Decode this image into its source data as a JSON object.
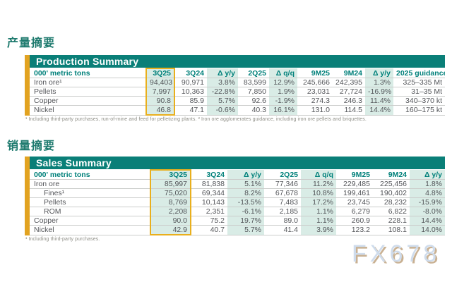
{
  "colors": {
    "teal_bar": "#0a7f78",
    "mint_column": "#d9ece6",
    "gold_highlight": "#e9af1d",
    "header_text": "#00807a",
    "body_text": "#54565a",
    "cjk_title": "#1e7a6e",
    "watermark": "#cfdcec"
  },
  "watermark": "FX678",
  "production": {
    "section_title": "产量摘要",
    "table_title": "Production Summary",
    "unit_header": "000' metric tons",
    "columns": [
      "3Q25",
      "3Q24",
      "Δ y/y",
      "2Q25",
      "Δ q/q",
      "9M25",
      "9M24",
      "Δ y/y",
      "2025 guidance"
    ],
    "rows": [
      {
        "label": "Iron ore¹",
        "indent": false,
        "values": [
          "94,403",
          "90,971",
          "3.8%",
          "83,599",
          "12.9%",
          "245,666",
          "242,395",
          "1.3%",
          "325–335 Mt"
        ]
      },
      {
        "label": "Pellets",
        "indent": false,
        "values": [
          "7,997",
          "10,363",
          "-22.8%",
          "7,850",
          "1.9%",
          "23,031",
          "27,724",
          "-16.9%",
          "31–35 Mt"
        ]
      },
      {
        "label": "Copper",
        "indent": false,
        "values": [
          "90.8",
          "85.9",
          "5.7%",
          "92.6",
          "-1.9%",
          "274.3",
          "246.3",
          "11.4%",
          "340–370 kt"
        ]
      },
      {
        "label": "Nickel",
        "indent": false,
        "values": [
          "46.8",
          "47.1",
          "-0.6%",
          "40.3",
          "16.1%",
          "131.0",
          "114.5",
          "14.4%",
          "160–175 kt"
        ]
      }
    ],
    "footnote": "¹ Including third-party purchases, run-of-mine and feed for pelletizing plants. ² Iron ore agglomerates guidance, including iron ore pellets and briquettes."
  },
  "sales": {
    "section_title": "销量摘要",
    "table_title": "Sales Summary",
    "unit_header": "000' metric tons",
    "columns": [
      "3Q25",
      "3Q24",
      "Δ y/y",
      "2Q25",
      "Δ q/q",
      "9M25",
      "9M24",
      "Δ y/y"
    ],
    "rows": [
      {
        "label": "Iron ore",
        "indent": false,
        "values": [
          "85,997",
          "81,838",
          "5.1%",
          "77,346",
          "11.2%",
          "229,485",
          "225,456",
          "1.8%"
        ]
      },
      {
        "label": "Fines¹",
        "indent": true,
        "values": [
          "75,020",
          "69,344",
          "8.2%",
          "67,678",
          "10.8%",
          "199,461",
          "190,402",
          "4.8%"
        ]
      },
      {
        "label": "Pellets",
        "indent": true,
        "values": [
          "8,769",
          "10,143",
          "-13.5%",
          "7,483",
          "17.2%",
          "23,745",
          "28,232",
          "-15.9%"
        ]
      },
      {
        "label": "ROM",
        "indent": true,
        "values": [
          "2,208",
          "2,351",
          "-6.1%",
          "2,185",
          "1.1%",
          "6,279",
          "6,822",
          "-8.0%"
        ]
      },
      {
        "label": "Copper",
        "indent": false,
        "values": [
          "90.0",
          "75.2",
          "19.7%",
          "89.0",
          "1.1%",
          "260.9",
          "228.1",
          "14.4%"
        ]
      },
      {
        "label": "Nickel",
        "indent": false,
        "values": [
          "42.9",
          "40.7",
          "5.7%",
          "41.4",
          "3.9%",
          "123.2",
          "108.1",
          "14.0%"
        ]
      }
    ],
    "footnote": "¹ Including third-party purchases."
  },
  "chart_data": [
    {
      "type": "table",
      "title": "Production Summary",
      "unit": "000' metric tons",
      "columns": [
        "3Q25",
        "3Q24",
        "Δ y/y",
        "2Q25",
        "Δ q/q",
        "9M25",
        "9M24",
        "Δ y/y",
        "2025 guidance"
      ],
      "rows": [
        [
          "Iron ore¹",
          "94,403",
          "90,971",
          "3.8%",
          "83,599",
          "12.9%",
          "245,666",
          "242,395",
          "1.3%",
          "325–335 Mt"
        ],
        [
          "Pellets",
          "7,997",
          "10,363",
          "-22.8%",
          "7,850",
          "1.9%",
          "23,031",
          "27,724",
          "-16.9%",
          "31–35 Mt"
        ],
        [
          "Copper",
          "90.8",
          "85.9",
          "5.7%",
          "92.6",
          "-1.9%",
          "274.3",
          "246.3",
          "11.4%",
          "340–370 kt"
        ],
        [
          "Nickel",
          "46.8",
          "47.1",
          "-0.6%",
          "40.3",
          "16.1%",
          "131.0",
          "114.5",
          "14.4%",
          "160–175 kt"
        ]
      ]
    },
    {
      "type": "table",
      "title": "Sales Summary",
      "unit": "000' metric tons",
      "columns": [
        "3Q25",
        "3Q24",
        "Δ y/y",
        "2Q25",
        "Δ q/q",
        "9M25",
        "9M24",
        "Δ y/y"
      ],
      "rows": [
        [
          "Iron ore",
          "85,997",
          "81,838",
          "5.1%",
          "77,346",
          "11.2%",
          "229,485",
          "225,456",
          "1.8%"
        ],
        [
          "Fines¹",
          "75,020",
          "69,344",
          "8.2%",
          "67,678",
          "10.8%",
          "199,461",
          "190,402",
          "4.8%"
        ],
        [
          "Pellets",
          "8,769",
          "10,143",
          "-13.5%",
          "7,483",
          "17.2%",
          "23,745",
          "28,232",
          "-15.9%"
        ],
        [
          "ROM",
          "2,208",
          "2,351",
          "-6.1%",
          "2,185",
          "1.1%",
          "6,279",
          "6,822",
          "-8.0%"
        ],
        [
          "Copper",
          "90.0",
          "75.2",
          "19.7%",
          "89.0",
          "1.1%",
          "260.9",
          "228.1",
          "14.4%"
        ],
        [
          "Nickel",
          "42.9",
          "40.7",
          "5.7%",
          "41.4",
          "3.9%",
          "123.2",
          "108.1",
          "14.0%"
        ]
      ]
    }
  ]
}
